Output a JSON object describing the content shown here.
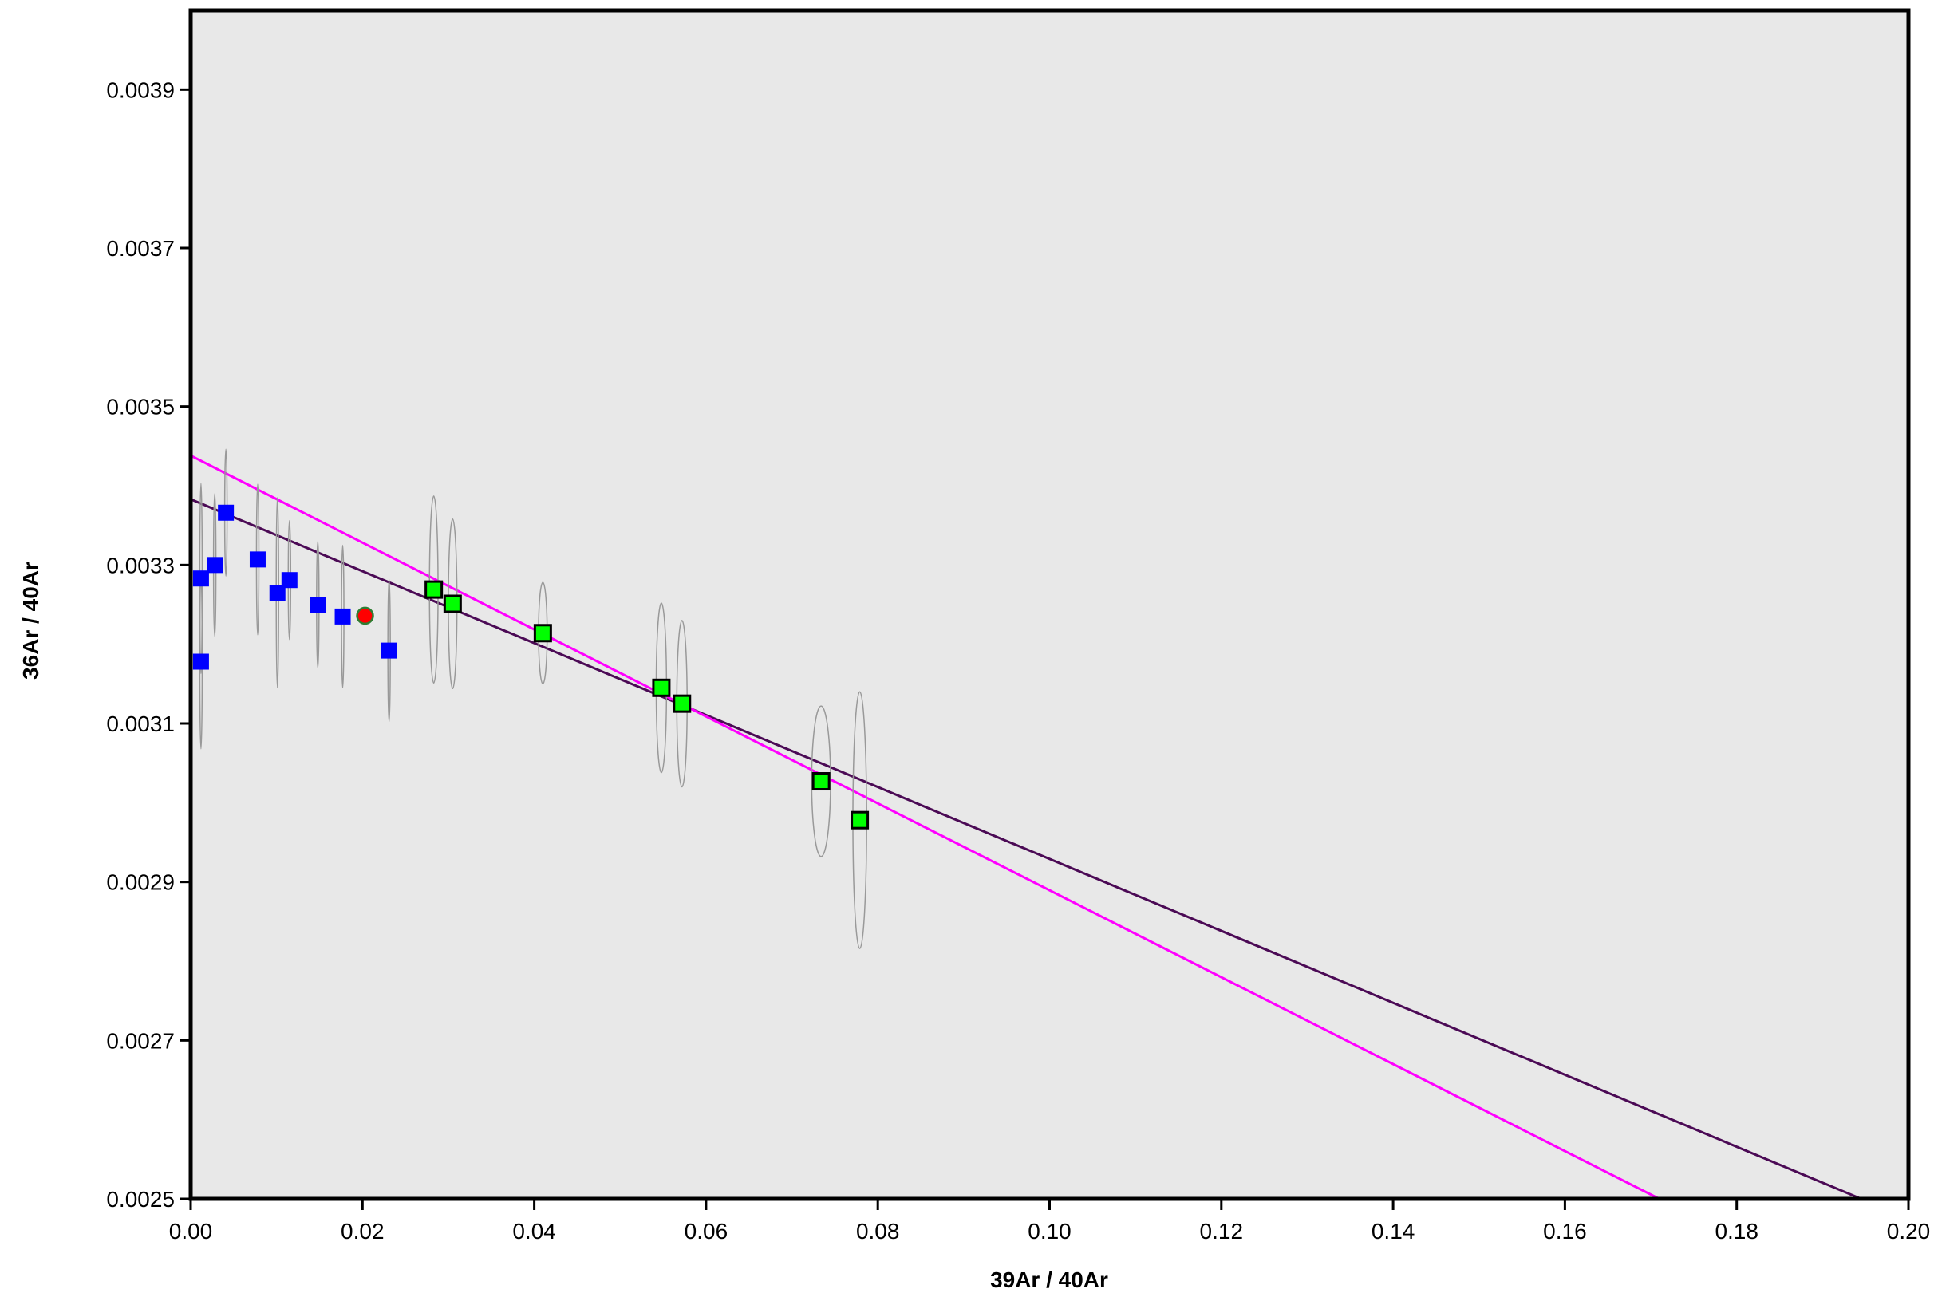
{
  "chart_data": {
    "type": "scatter",
    "title": "",
    "xlabel": "39Ar / 40Ar",
    "ylabel": "36Ar / 40Ar",
    "xlim": [
      0,
      0.2
    ],
    "ylim": [
      0.0025,
      0.004
    ],
    "x_ticks": [
      "0.00",
      "0.02",
      "0.04",
      "0.06",
      "0.08",
      "0.10",
      "0.12",
      "0.14",
      "0.16",
      "0.18",
      "0.20"
    ],
    "y_ticks": [
      "0.0025",
      "0.0027",
      "0.0029",
      "0.0031",
      "0.0033",
      "0.0035",
      "0.0037",
      "0.0039"
    ],
    "grid": false,
    "colors": {
      "plot_background": "#e8e8e8",
      "excluded_steps": "#0000ff",
      "included_steps": "#00ff00",
      "marker_outline": "#000000",
      "highlight_point": "#ff0000",
      "highlight_outline": "#2e7d32",
      "error_ellipse": "#999999",
      "fit_line_dark": "#4b0a55",
      "fit_line_magenta": "#ff00ff"
    },
    "series": [
      {
        "marker": "square",
        "color": "#0000ff",
        "x": [
          0.0012,
          0.0012,
          0.0028,
          0.0041,
          0.0078,
          0.0101,
          0.0115,
          0.0148,
          0.0177,
          0.0231
        ],
        "y": [
          0.003283,
          0.003178,
          0.0033,
          0.003366,
          0.003307,
          0.003265,
          0.003281,
          0.00325,
          0.003235,
          0.003192
        ],
        "y_err": [
          0.00012,
          0.00011,
          9e-05,
          8e-05,
          9.5e-05,
          0.00012,
          7.5e-05,
          8e-05,
          9e-05,
          9e-05
        ]
      },
      {
        "marker": "square",
        "color": "#00ff00",
        "x": [
          0.0283,
          0.0305,
          0.041,
          0.0548,
          0.0572,
          0.0734,
          0.0779
        ],
        "y": [
          0.003269,
          0.003251,
          0.003214,
          0.003145,
          0.003125,
          0.003027,
          0.002978
        ],
        "y_err": [
          0.000118,
          0.000107,
          6.4e-05,
          0.000107,
          0.000105,
          9.5e-05,
          0.000162
        ],
        "x_err": [
          0.0005,
          0.0005,
          0.0005,
          0.0006,
          0.0006,
          0.0011,
          0.0008
        ]
      },
      {
        "marker": "circle",
        "color": "#ff0000",
        "x": [
          0.0203
        ],
        "y": [
          0.003236
        ]
      }
    ],
    "lines": [
      {
        "color": "#4b0a55",
        "x": [
          0,
          0.1945
        ],
        "y": [
          0.003383,
          0.0025
        ]
      },
      {
        "color": "#ff00ff",
        "x": [
          0,
          0.171
        ],
        "y": [
          0.003438,
          0.0025
        ]
      }
    ]
  }
}
